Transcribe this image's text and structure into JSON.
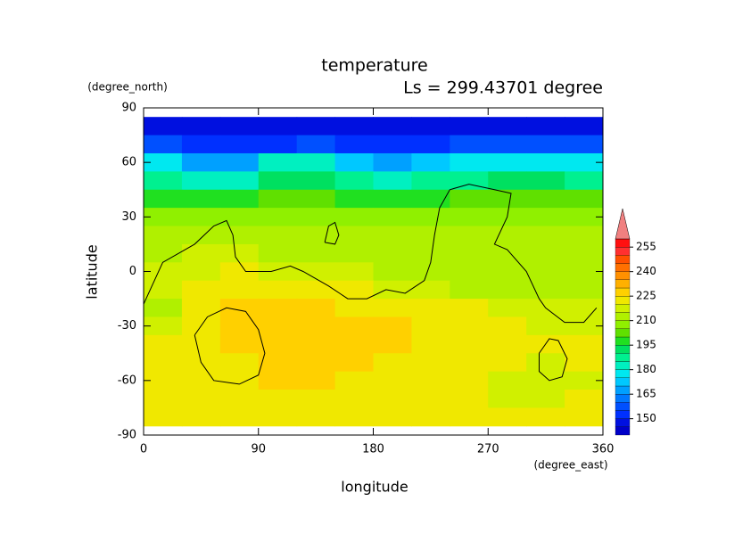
{
  "chart_data": {
    "type": "filled-contour",
    "title": "temperature",
    "subtitle": "Ls = 299.43701 degree",
    "x_label": "longitude",
    "y_label": "latitude",
    "x_units": "(degree_east)",
    "y_units": "(degree_north)",
    "xlim": [
      0,
      360
    ],
    "ylim": [
      -90,
      90
    ],
    "xticks": [
      0,
      90,
      180,
      270,
      360
    ],
    "yticks": [
      90,
      60,
      30,
      0,
      -30,
      -60,
      -90
    ],
    "x": [
      15,
      45,
      75,
      105,
      135,
      165,
      195,
      225,
      255,
      285,
      315,
      345
    ],
    "y": [
      80,
      70,
      60,
      50,
      40,
      30,
      20,
      10,
      0,
      -10,
      -20,
      -30,
      -40,
      -50,
      -60,
      -70,
      -80
    ],
    "z": [
      [
        145,
        145,
        145,
        145,
        145,
        145,
        145,
        145,
        145,
        145,
        145,
        145
      ],
      [
        155,
        150,
        150,
        152,
        155,
        152,
        150,
        152,
        155,
        155,
        155,
        155
      ],
      [
        175,
        165,
        165,
        180,
        180,
        170,
        165,
        170,
        175,
        175,
        175,
        175
      ],
      [
        185,
        180,
        180,
        190,
        190,
        185,
        180,
        185,
        188,
        190,
        190,
        188
      ],
      [
        195,
        195,
        195,
        200,
        200,
        198,
        195,
        197,
        200,
        200,
        200,
        200
      ],
      [
        205,
        205,
        205,
        207,
        207,
        205,
        205,
        205,
        205,
        205,
        205,
        205
      ],
      [
        210,
        210,
        210,
        212,
        212,
        210,
        210,
        210,
        210,
        210,
        210,
        210
      ],
      [
        213,
        215,
        215,
        213,
        213,
        213,
        213,
        212,
        213,
        213,
        213,
        213
      ],
      [
        217,
        218,
        220,
        217,
        215,
        215,
        213,
        213,
        213,
        213,
        213,
        213
      ],
      [
        215,
        220,
        222,
        222,
        220,
        220,
        218,
        215,
        213,
        213,
        213,
        213
      ],
      [
        213,
        222,
        225,
        226,
        226,
        224,
        222,
        222,
        220,
        218,
        218,
        215
      ],
      [
        218,
        224,
        227,
        228,
        228,
        228,
        226,
        224,
        220,
        220,
        218,
        218
      ],
      [
        220,
        224,
        226,
        226,
        228,
        226,
        228,
        222,
        222,
        220,
        220,
        220
      ],
      [
        220,
        222,
        223,
        226,
        228,
        228,
        224,
        222,
        222,
        220,
        218,
        220
      ],
      [
        220,
        222,
        222,
        228,
        226,
        224,
        222,
        222,
        220,
        218,
        216,
        218
      ],
      [
        220,
        222,
        222,
        222,
        222,
        222,
        222,
        222,
        220,
        218,
        215,
        220
      ],
      [
        220,
        222,
        222,
        222,
        222,
        222,
        222,
        222,
        222,
        220,
        220,
        220
      ]
    ],
    "levels": [
      140,
      145,
      150,
      155,
      160,
      165,
      170,
      175,
      180,
      185,
      190,
      195,
      200,
      205,
      210,
      215,
      220,
      225,
      230,
      235,
      240,
      245,
      250,
      255,
      260
    ],
    "colors": [
      "#0000c8",
      "#0010e0",
      "#0030ff",
      "#0050ff",
      "#0078ff",
      "#00a0ff",
      "#00c8ff",
      "#00e8f0",
      "#00f0c0",
      "#00f090",
      "#00e060",
      "#20e020",
      "#60e000",
      "#90f000",
      "#b0f000",
      "#d0f000",
      "#f0e800",
      "#ffd000",
      "#ffb000",
      "#ff9000",
      "#ff7000",
      "#ff5000",
      "#ff3030",
      "#ff1010"
    ],
    "over_color": "#f08080",
    "colorbar_ticks": [
      150,
      165,
      180,
      195,
      210,
      225,
      240,
      255
    ],
    "contours": [
      {
        "x": [
          0,
          15,
          40,
          55,
          65,
          70,
          72,
          80,
          100,
          115,
          125,
          145,
          160,
          175,
          190,
          205,
          220,
          225,
          228,
          232,
          240,
          255,
          275,
          288,
          285,
          275,
          285,
          300,
          310,
          315,
          330,
          345,
          355
        ],
        "y": [
          -18,
          5,
          15,
          25,
          28,
          20,
          8,
          0,
          0,
          3,
          0,
          -8,
          -15,
          -15,
          -10,
          -12,
          -5,
          5,
          20,
          35,
          45,
          48,
          45,
          43,
          30,
          15,
          12,
          0,
          -15,
          -20,
          -28,
          -28,
          -20
        ]
      },
      {
        "x": [
          142,
          145,
          150,
          153,
          150,
          142
        ],
        "y": [
          16,
          25,
          27,
          20,
          15,
          16
        ]
      },
      {
        "x": [
          40,
          50,
          65,
          80,
          90,
          95,
          90,
          75,
          55,
          45,
          40
        ],
        "y": [
          -35,
          -25,
          -20,
          -22,
          -32,
          -45,
          -57,
          -62,
          -60,
          -50,
          -35
        ]
      },
      {
        "x": [
          310,
          318,
          325,
          332,
          328,
          318,
          310,
          310
        ],
        "y": [
          -45,
          -37,
          -38,
          -48,
          -58,
          -60,
          -55,
          -45
        ]
      }
    ]
  }
}
